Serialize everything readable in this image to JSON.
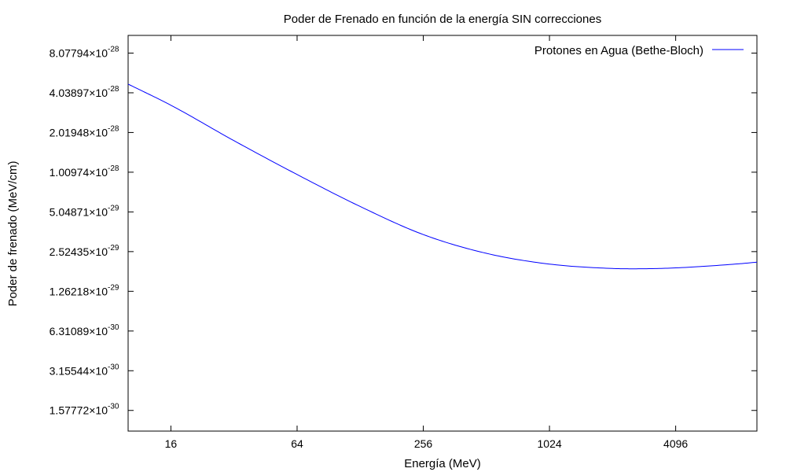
{
  "chart_data": {
    "type": "line",
    "title": "Poder de Frenado en función de la energía SIN correcciones",
    "xlabel": "Energía (MeV)",
    "ylabel": "Poder de frenado (MeV/cm)",
    "x_scale": "log2",
    "y_scale": "log2",
    "xlim": [
      10,
      10000
    ],
    "ylim": [
      1.1e-30,
      1.1e-27
    ],
    "grid": false,
    "legend_position": "top-right",
    "line_color": "#0000ff",
    "x_ticks": [
      {
        "value": 16,
        "label": "16"
      },
      {
        "value": 64,
        "label": "64"
      },
      {
        "value": 256,
        "label": "256"
      },
      {
        "value": 1024,
        "label": "1024"
      },
      {
        "value": 4096,
        "label": "4096"
      }
    ],
    "y_ticks": [
      {
        "value": 1.57772e-30,
        "mantissa": "1.57772×10",
        "exponent": "-30"
      },
      {
        "value": 3.15544e-30,
        "mantissa": "3.15544×10",
        "exponent": "-30"
      },
      {
        "value": 6.31089e-30,
        "mantissa": "6.31089×10",
        "exponent": "-30"
      },
      {
        "value": 1.26218e-29,
        "mantissa": "1.26218×10",
        "exponent": "-29"
      },
      {
        "value": 2.52435e-29,
        "mantissa": "2.52435×10",
        "exponent": "-29"
      },
      {
        "value": 5.04871e-29,
        "mantissa": "5.04871×10",
        "exponent": "-29"
      },
      {
        "value": 1.00974e-28,
        "mantissa": "1.00974×10",
        "exponent": "-28"
      },
      {
        "value": 2.01948e-28,
        "mantissa": "2.01948×10",
        "exponent": "-28"
      },
      {
        "value": 4.03897e-28,
        "mantissa": "4.03897×10",
        "exponent": "-28"
      },
      {
        "value": 8.07794e-28,
        "mantissa": "8.07794×10",
        "exponent": "-28"
      }
    ],
    "series": [
      {
        "name": "Protones en Agua (Bethe-Bloch)",
        "color": "#0000ff",
        "x": [
          10,
          16,
          32,
          64,
          128,
          256,
          512,
          1024,
          2048,
          2600,
          4096,
          8192,
          10000
        ],
        "y": [
          4.7e-28,
          3.25e-28,
          1.75e-28,
          9.7e-29,
          5.55e-29,
          3.4e-29,
          2.45e-29,
          2.03e-29,
          1.88e-29,
          1.87e-29,
          1.9e-29,
          2.04e-29,
          2.1e-29
        ]
      }
    ]
  }
}
